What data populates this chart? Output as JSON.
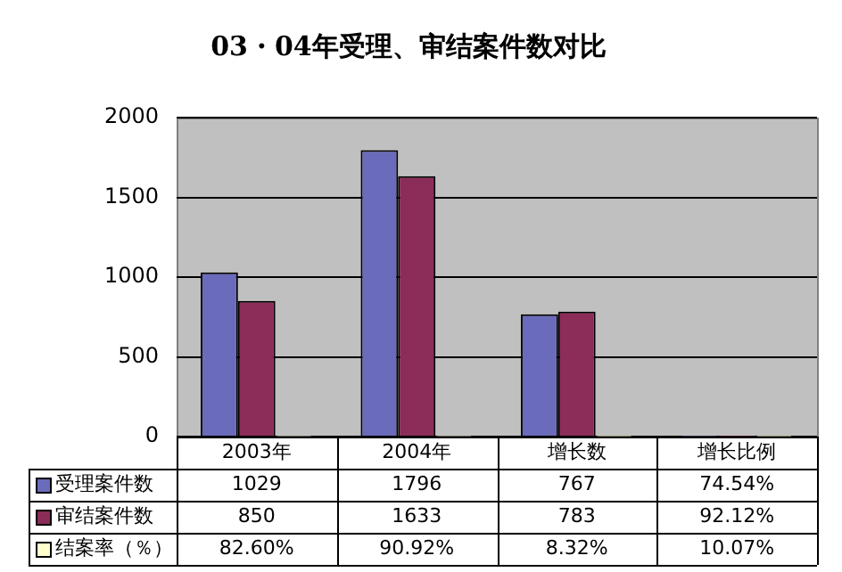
{
  "chart_data": {
    "type": "bar",
    "title": "03・04年受理、审结案件数对比",
    "categories": [
      "2003年",
      "2004年",
      "增长数",
      "增长比例"
    ],
    "series": [
      {
        "name": "受理案件数",
        "color": "#6b6bbb",
        "values": [
          1029,
          1796,
          767,
          0.7454
        ],
        "value_labels": [
          "1029",
          "1796",
          "767",
          "74.54%"
        ]
      },
      {
        "name": "审结案件数",
        "color": "#8c2c58",
        "values": [
          850,
          1633,
          783,
          0.9212
        ],
        "value_labels": [
          "850",
          "1633",
          "783",
          "92.12%"
        ]
      },
      {
        "name": "结案率（％）",
        "color": "#ffffcc",
        "values": [
          0.826,
          0.9092,
          0.0832,
          0.1007
        ],
        "value_labels": [
          "82.60%",
          "90.92%",
          "8.32%",
          "10.07%"
        ]
      }
    ],
    "ylim": [
      0,
      2000
    ],
    "yticks": [
      0,
      500,
      1000,
      1500,
      2000
    ],
    "grid": "y",
    "legend": "bottom"
  }
}
